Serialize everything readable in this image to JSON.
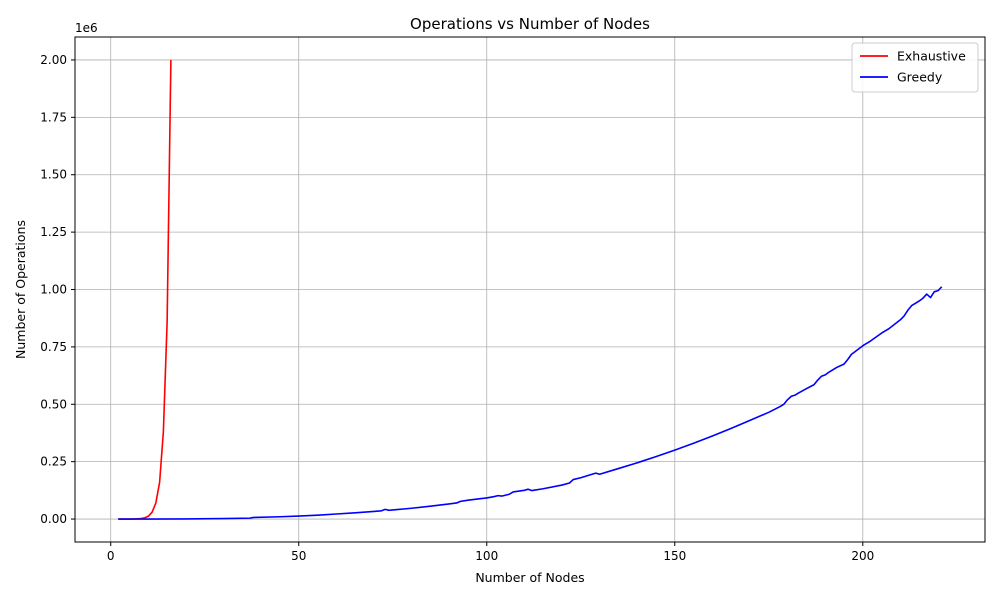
{
  "chart_data": {
    "type": "line",
    "title": "Operations vs Number of Nodes",
    "xlabel": "Number of Nodes",
    "ylabel": "Number of Operations",
    "y_offset_label": "1e6",
    "xlim": [
      -9.5,
      232.5
    ],
    "ylim": [
      -0.1,
      2.1
    ],
    "x_ticks": [
      0,
      50,
      100,
      150,
      200
    ],
    "x_tick_labels": [
      "0",
      "50",
      "100",
      "150",
      "200"
    ],
    "y_ticks": [
      0,
      0.25,
      0.5,
      0.75,
      1.0,
      1.25,
      1.5,
      1.75,
      2.0
    ],
    "y_tick_labels": [
      "0.00",
      "0.25",
      "0.50",
      "0.75",
      "1.00",
      "1.25",
      "1.50",
      "1.75",
      "2.00"
    ],
    "grid": true,
    "legend_position": "top-right",
    "series": [
      {
        "name": "Exhaustive",
        "color": "#ff0000",
        "x": [
          2,
          3,
          4,
          5,
          6,
          7,
          8,
          9,
          10,
          11,
          12,
          13,
          14,
          15,
          16
        ],
        "y": [
          0.0,
          0.0,
          0.0,
          0.0,
          0.0005,
          0.001,
          0.002,
          0.005,
          0.012,
          0.03,
          0.07,
          0.16,
          0.38,
          0.86,
          2.0
        ]
      },
      {
        "name": "Greedy",
        "color": "#0000ff",
        "x": [
          2,
          10,
          20,
          30,
          37,
          38,
          45,
          50,
          55,
          60,
          65,
          70,
          72,
          73,
          74,
          80,
          85,
          90,
          92,
          93,
          95,
          98,
          100,
          102,
          103,
          104,
          106,
          107,
          110,
          111,
          112,
          115,
          120,
          122,
          123,
          125,
          128,
          129,
          130,
          135,
          140,
          145,
          150,
          155,
          160,
          165,
          170,
          175,
          178,
          179,
          180,
          181,
          182,
          183,
          185,
          187,
          188,
          189,
          190,
          191,
          193,
          195,
          196,
          197,
          198,
          200,
          202,
          205,
          207,
          210,
          211,
          212,
          213,
          214,
          215,
          216,
          217,
          218,
          219,
          220,
          221
        ],
        "y": [
          0.0,
          0.0,
          0.0005,
          0.002,
          0.004,
          0.007,
          0.01,
          0.013,
          0.017,
          0.022,
          0.027,
          0.033,
          0.036,
          0.042,
          0.038,
          0.047,
          0.056,
          0.066,
          0.07,
          0.077,
          0.082,
          0.088,
          0.092,
          0.098,
          0.102,
          0.1,
          0.108,
          0.118,
          0.125,
          0.13,
          0.124,
          0.132,
          0.148,
          0.157,
          0.172,
          0.18,
          0.195,
          0.2,
          0.195,
          0.22,
          0.245,
          0.272,
          0.3,
          0.33,
          0.362,
          0.395,
          0.43,
          0.465,
          0.49,
          0.5,
          0.52,
          0.535,
          0.54,
          0.55,
          0.568,
          0.585,
          0.605,
          0.622,
          0.628,
          0.64,
          0.66,
          0.675,
          0.695,
          0.718,
          0.73,
          0.755,
          0.775,
          0.81,
          0.83,
          0.868,
          0.885,
          0.91,
          0.93,
          0.94,
          0.95,
          0.962,
          0.98,
          0.965,
          0.99,
          0.995,
          1.012
        ]
      }
    ]
  }
}
